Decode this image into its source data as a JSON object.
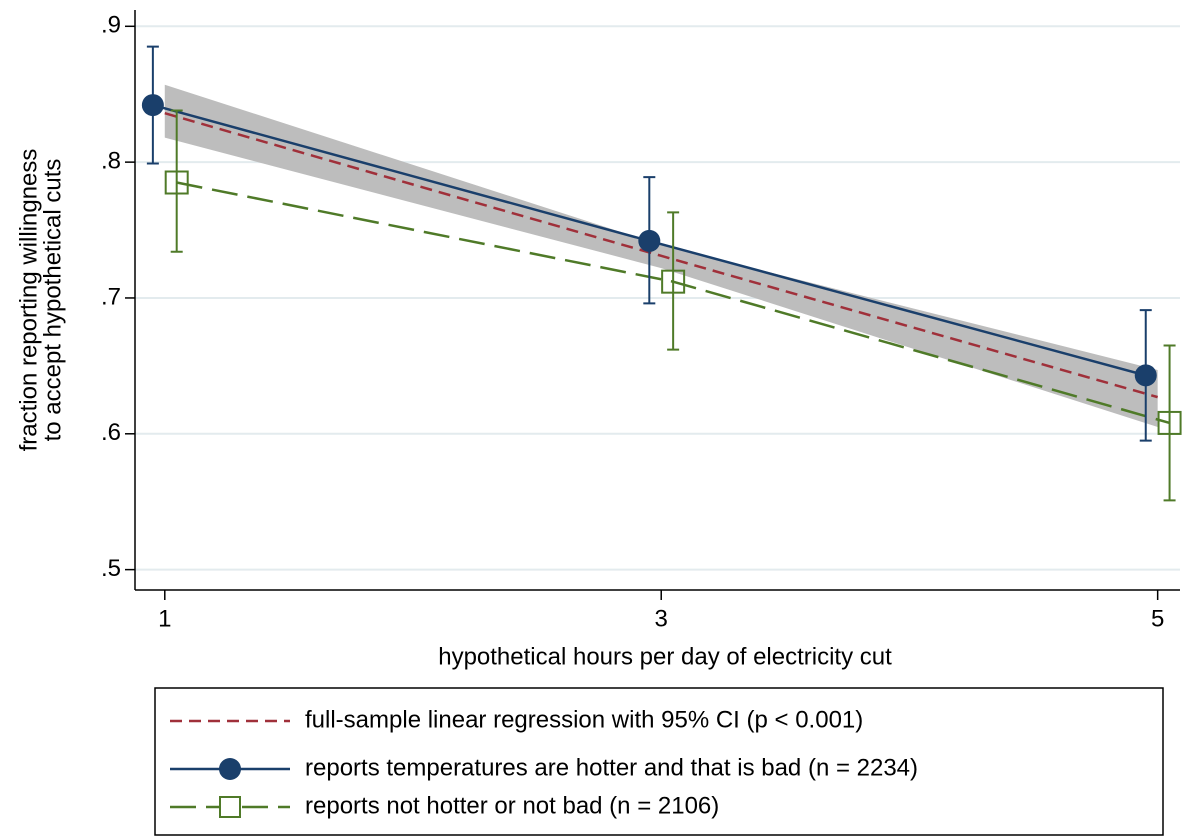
{
  "chart_data": {
    "type": "line",
    "xlabel": "hypothetical hours per day of electricity cut",
    "ylabel": [
      "fraction reporting willingness",
      "to accept hypothetical cuts"
    ],
    "xlim": [
      0.88,
      5.09
    ],
    "ylim": [
      0.485,
      0.912
    ],
    "xticks": [
      1,
      3,
      5
    ],
    "yticks": [
      {
        "value": 0.5,
        "label": ".5"
      },
      {
        "value": 0.6,
        "label": ".6"
      },
      {
        "value": 0.7,
        "label": ".7"
      },
      {
        "value": 0.8,
        "label": ".8"
      },
      {
        "value": 0.9,
        "label": ".9"
      }
    ],
    "grid": true,
    "regression": {
      "name": "full-sample linear regression with 95% CI (p < 0.001)",
      "color": "#a0303a",
      "band_color": "#bdbdbd",
      "x": [
        1,
        3,
        5
      ],
      "values": [
        0.836,
        0.731,
        0.627
      ],
      "lower": [
        0.818,
        0.722,
        0.605
      ],
      "upper": [
        0.857,
        0.739,
        0.647
      ]
    },
    "series": [
      {
        "name": "reports temperatures are hotter and that is bad  (n = 2234)",
        "color": "#1a3f6b",
        "marker": "circle",
        "x": [
          0.952,
          2.952,
          4.952
        ],
        "values": [
          0.842,
          0.742,
          0.643
        ],
        "lower": [
          0.799,
          0.696,
          0.595
        ],
        "upper": [
          0.885,
          0.789,
          0.691
        ]
      },
      {
        "name": "reports not hotter or not bad (n = 2106)",
        "color": "#4f7a28",
        "marker": "square",
        "x": [
          1.048,
          3.048,
          5.048
        ],
        "values": [
          0.785,
          0.712,
          0.608
        ],
        "lower": [
          0.734,
          0.662,
          0.551
        ],
        "upper": [
          0.838,
          0.763,
          0.665
        ]
      }
    ]
  }
}
